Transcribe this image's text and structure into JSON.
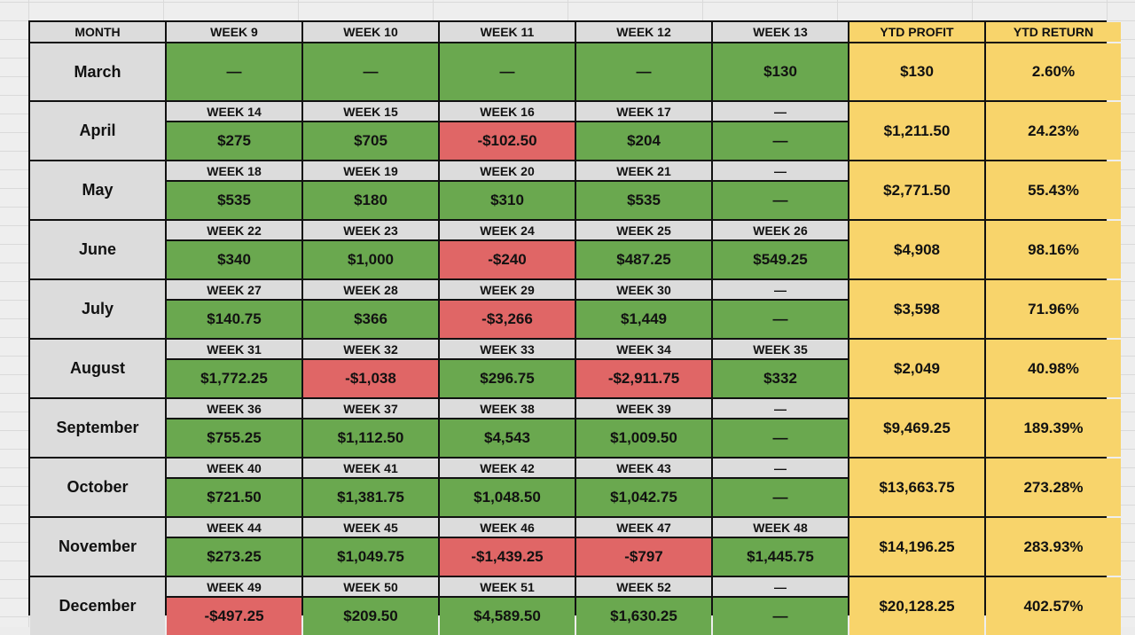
{
  "headers": [
    "MONTH",
    "WEEK 9",
    "WEEK 10",
    "WEEK 11",
    "WEEK 12",
    "WEEK 13",
    "YTD PROFIT",
    "YTD RETURN"
  ],
  "march": {
    "month": "March",
    "values": [
      "—",
      "—",
      "—",
      "—",
      "$130"
    ],
    "ytd_profit": "$130",
    "ytd_return": "2.60%"
  },
  "rows": [
    {
      "month": "April",
      "weeks": [
        "WEEK 14",
        "WEEK 15",
        "WEEK 16",
        "WEEK 17",
        "—"
      ],
      "values": [
        "$275",
        "$705",
        "-$102.50",
        "$204",
        "—"
      ],
      "ytd_profit": "$1,211.50",
      "ytd_return": "24.23%"
    },
    {
      "month": "May",
      "weeks": [
        "WEEK 18",
        "WEEK 19",
        "WEEK 20",
        "WEEK 21",
        "—"
      ],
      "values": [
        "$535",
        "$180",
        "$310",
        "$535",
        "—"
      ],
      "ytd_profit": "$2,771.50",
      "ytd_return": "55.43%"
    },
    {
      "month": "June",
      "weeks": [
        "WEEK 22",
        "WEEK 23",
        "WEEK 24",
        "WEEK 25",
        "WEEK 26"
      ],
      "values": [
        "$340",
        "$1,000",
        "-$240",
        "$487.25",
        "$549.25"
      ],
      "ytd_profit": "$4,908",
      "ytd_return": "98.16%"
    },
    {
      "month": "July",
      "weeks": [
        "WEEK 27",
        "WEEK 28",
        "WEEK 29",
        "WEEK 30",
        "—"
      ],
      "values": [
        "$140.75",
        "$366",
        "-$3,266",
        "$1,449",
        "—"
      ],
      "ytd_profit": "$3,598",
      "ytd_return": "71.96%"
    },
    {
      "month": "August",
      "weeks": [
        "WEEK 31",
        "WEEK 32",
        "WEEK 33",
        "WEEK 34",
        "WEEK 35"
      ],
      "values": [
        "$1,772.25",
        "-$1,038",
        "$296.75",
        "-$2,911.75",
        "$332"
      ],
      "ytd_profit": "$2,049",
      "ytd_return": "40.98%"
    },
    {
      "month": "September",
      "weeks": [
        "WEEK 36",
        "WEEK 37",
        "WEEK 38",
        "WEEK 39",
        "—"
      ],
      "values": [
        "$755.25",
        "$1,112.50",
        "$4,543",
        "$1,009.50",
        "—"
      ],
      "ytd_profit": "$9,469.25",
      "ytd_return": "189.39%"
    },
    {
      "month": "October",
      "weeks": [
        "WEEK 40",
        "WEEK 41",
        "WEEK 42",
        "WEEK 43",
        "—"
      ],
      "values": [
        "$721.50",
        "$1,381.75",
        "$1,048.50",
        "$1,042.75",
        "—"
      ],
      "ytd_profit": "$13,663.75",
      "ytd_return": "273.28%"
    },
    {
      "month": "November",
      "weeks": [
        "WEEK 44",
        "WEEK 45",
        "WEEK 46",
        "WEEK 47",
        "WEEK 48"
      ],
      "values": [
        "$273.25",
        "$1,049.75",
        "-$1,439.25",
        "-$797",
        "$1,445.75"
      ],
      "ytd_profit": "$14,196.25",
      "ytd_return": "283.93%"
    },
    {
      "month": "December",
      "weeks": [
        "WEEK 49",
        "WEEK 50",
        "WEEK 51",
        "WEEK 52",
        "—"
      ],
      "values": [
        "-$497.25",
        "$209.50",
        "$4,589.50",
        "$1,630.25",
        "—"
      ],
      "ytd_profit": "$20,128.25",
      "ytd_return": "402.57%"
    }
  ],
  "colors": {
    "gain": "#6aa84f",
    "loss": "#e06666",
    "ytd": "#f8d46b",
    "header": "#dcdcdc"
  }
}
